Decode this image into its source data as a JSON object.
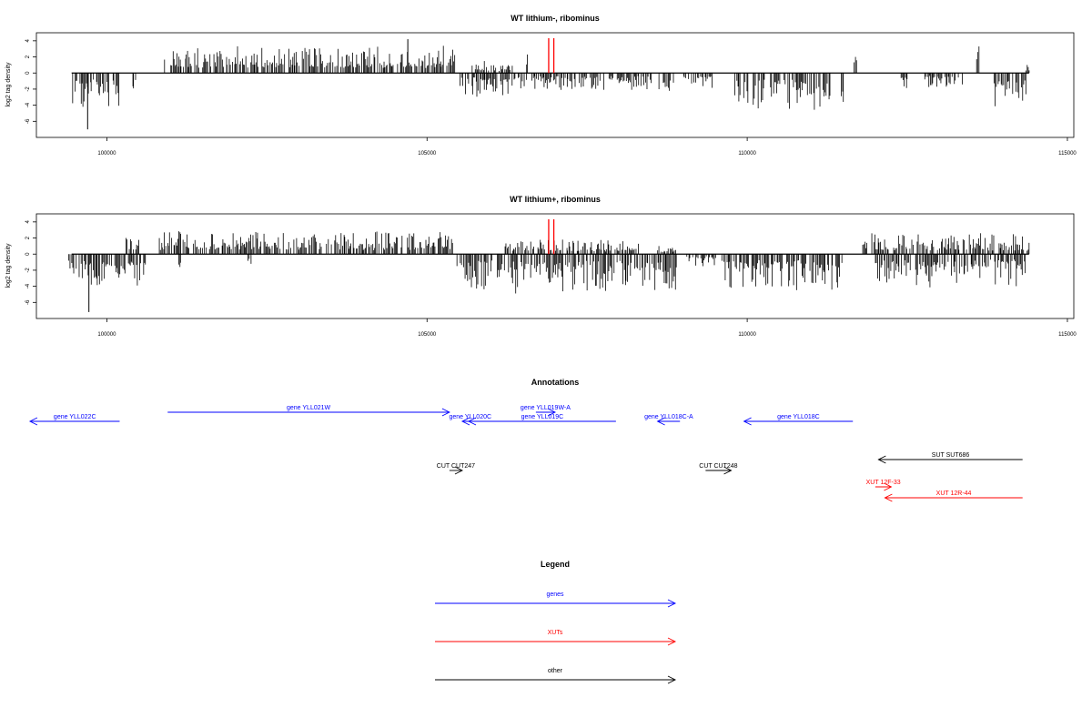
{
  "chart_data": [
    {
      "type": "bar",
      "title": "WT lithium-, ribominus",
      "ylabel": "log2 tag density",
      "xlabel": "",
      "xlim": [
        98900,
        115100
      ],
      "ylim": [
        -8,
        5
      ],
      "x_ticks": [
        100000,
        105000,
        110000,
        115000
      ],
      "y_ticks": [
        4,
        2,
        0,
        -2,
        -4,
        -6
      ],
      "highlight_x": [
        106900,
        106980
      ],
      "highlight_color": "#ff0000",
      "bar_color": "#000000",
      "segments": [
        {
          "start": 99450,
          "end": 100200,
          "sign": -1,
          "mean": 2.4,
          "max": 5.0,
          "extreme_x": 99700,
          "extreme_val": -7.0
        },
        {
          "start": 100400,
          "end": 100450,
          "sign": -1,
          "mean": 1.6,
          "max": 2.2
        },
        {
          "start": 100900,
          "end": 105450,
          "sign": 1,
          "mean": 1.8,
          "max": 4.2,
          "extreme_x": 104700,
          "extreme_val": 4.2
        },
        {
          "start": 105500,
          "end": 105560,
          "sign": -1,
          "mean": 1.2,
          "max": 1.6
        },
        {
          "start": 105600,
          "end": 106550,
          "sign": -1,
          "mean": 1.6,
          "max": 3.6
        },
        {
          "start": 105700,
          "end": 106400,
          "sign": 1,
          "mean": 0.8,
          "max": 1.5
        },
        {
          "start": 106550,
          "end": 106580,
          "sign": 1,
          "mean": 2.0,
          "max": 2.3
        },
        {
          "start": 106620,
          "end": 108500,
          "sign": -1,
          "mean": 1.2,
          "max": 3.0
        },
        {
          "start": 108600,
          "end": 108850,
          "sign": -1,
          "mean": 1.6,
          "max": 3.0
        },
        {
          "start": 109000,
          "end": 109450,
          "sign": -1,
          "mean": 1.0,
          "max": 2.2
        },
        {
          "start": 109800,
          "end": 111300,
          "sign": -1,
          "mean": 2.6,
          "max": 5.3
        },
        {
          "start": 111450,
          "end": 111500,
          "sign": -1,
          "mean": 2.5,
          "max": 5.8
        },
        {
          "start": 111650,
          "end": 111700,
          "sign": 1,
          "mean": 1.8,
          "max": 2.0
        },
        {
          "start": 112400,
          "end": 112500,
          "sign": -1,
          "mean": 1.2,
          "max": 2.0
        },
        {
          "start": 112700,
          "end": 113400,
          "sign": -1,
          "mean": 1.0,
          "max": 2.4
        },
        {
          "start": 113580,
          "end": 113620,
          "sign": 1,
          "mean": 3.0,
          "max": 3.3
        },
        {
          "start": 113850,
          "end": 114350,
          "sign": -1,
          "mean": 2.4,
          "max": 5.3
        },
        {
          "start": 114350,
          "end": 114400,
          "sign": 1,
          "mean": 0.8,
          "max": 1.0
        }
      ]
    },
    {
      "type": "bar",
      "title": "WT lithium+, ribominus",
      "ylabel": "log2 tag density",
      "xlabel": "",
      "xlim": [
        98900,
        115100
      ],
      "ylim": [
        -8,
        5
      ],
      "x_ticks": [
        100000,
        105000,
        110000,
        115000
      ],
      "y_ticks": [
        4,
        2,
        0,
        -2,
        -4,
        -6
      ],
      "highlight_x": [
        106900,
        106980
      ],
      "highlight_color": "#ff0000",
      "bar_color": "#000000",
      "segments": [
        {
          "start": 99400,
          "end": 100600,
          "sign": -1,
          "mean": 2.6,
          "max": 4.6,
          "extreme_x": 99720,
          "extreme_val": -7.2
        },
        {
          "start": 100300,
          "end": 100500,
          "sign": 1,
          "mean": 1.2,
          "max": 2.0
        },
        {
          "start": 100800,
          "end": 105400,
          "sign": 1,
          "mean": 1.6,
          "max": 4.0
        },
        {
          "start": 101100,
          "end": 101150,
          "sign": -1,
          "mean": 1.2,
          "max": 1.6
        },
        {
          "start": 102200,
          "end": 102250,
          "sign": -1,
          "mean": 1.2,
          "max": 1.6
        },
        {
          "start": 105450,
          "end": 108900,
          "sign": -1,
          "mean": 2.6,
          "max": 6.3
        },
        {
          "start": 106200,
          "end": 108300,
          "sign": 1,
          "mean": 1.0,
          "max": 3.8
        },
        {
          "start": 108600,
          "end": 108900,
          "sign": 1,
          "mean": 0.6,
          "max": 1.0
        },
        {
          "start": 109050,
          "end": 109500,
          "sign": -1,
          "mean": 0.8,
          "max": 1.6
        },
        {
          "start": 109600,
          "end": 111500,
          "sign": -1,
          "mean": 2.4,
          "max": 5.6
        },
        {
          "start": 111800,
          "end": 114350,
          "sign": 1,
          "mean": 1.4,
          "max": 4.5
        },
        {
          "start": 112000,
          "end": 114350,
          "sign": -1,
          "mean": 2.2,
          "max": 6.0
        },
        {
          "start": 114350,
          "end": 114400,
          "sign": 1,
          "mean": 1.2,
          "max": 1.4
        }
      ]
    }
  ],
  "annotations": {
    "title": "Annotations",
    "features": [
      {
        "label": "gene YLL022C",
        "start": 98800,
        "end": 100200,
        "strand": "-",
        "color": "#0000ff",
        "track": 1
      },
      {
        "label": "gene YLL021W",
        "start": 100950,
        "end": 105350,
        "strand": "+",
        "color": "#0000ff",
        "track": 0
      },
      {
        "label": "gene YLL020C",
        "start": 105550,
        "end": 105800,
        "strand": "-",
        "color": "#0000ff",
        "track": 1
      },
      {
        "label": "gene YLL019C",
        "start": 105650,
        "end": 107950,
        "strand": "-",
        "color": "#0000ff",
        "track": 1
      },
      {
        "label": "gene YLL019W-A",
        "start": 106700,
        "end": 107000,
        "strand": "+",
        "color": "#0000ff",
        "track": 0
      },
      {
        "label": "gene YLL018C-A",
        "start": 108600,
        "end": 108950,
        "strand": "-",
        "color": "#0000ff",
        "track": 1
      },
      {
        "label": "gene YLL018C",
        "start": 109950,
        "end": 111650,
        "strand": "-",
        "color": "#0000ff",
        "track": 1
      },
      {
        "label": "CUT CUT247",
        "start": 105350,
        "end": 105550,
        "strand": "+",
        "color": "#000000",
        "track": 4
      },
      {
        "label": "CUT CUT248",
        "start": 109350,
        "end": 109750,
        "strand": "+",
        "color": "#000000",
        "track": 4
      },
      {
        "label": "SUT SUT686",
        "start": 112050,
        "end": 114300,
        "strand": "-",
        "color": "#000000",
        "track": 3
      },
      {
        "label": "XUT 12F-33",
        "start": 112000,
        "end": 112250,
        "strand": "+",
        "color": "#ff0000",
        "track": 5
      },
      {
        "label": "XUT 12R-44",
        "start": 112150,
        "end": 114300,
        "strand": "-",
        "color": "#ff0000",
        "track": 6
      }
    ]
  },
  "legend": {
    "title": "Legend",
    "items": [
      {
        "label": "genes",
        "color": "#0000ff"
      },
      {
        "label": "XUTs",
        "color": "#ff0000"
      },
      {
        "label": "other",
        "color": "#000000"
      }
    ]
  }
}
